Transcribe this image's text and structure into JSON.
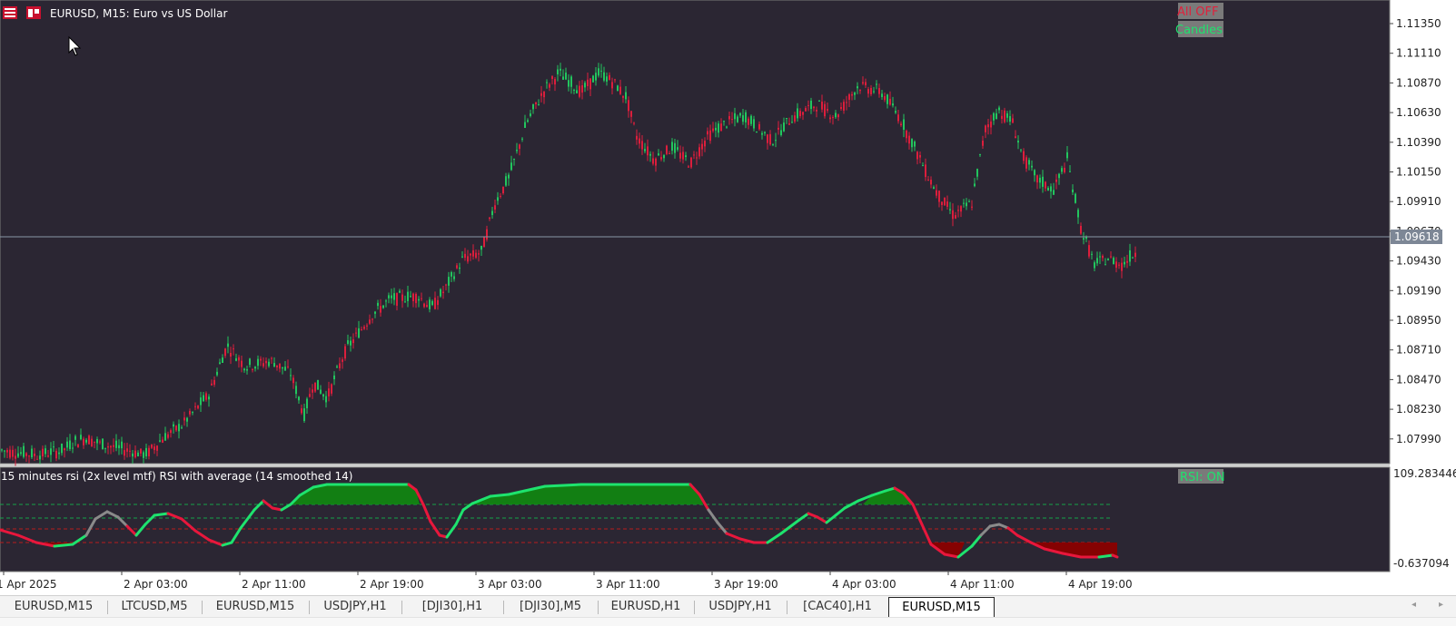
{
  "chart": {
    "symbol_title": "EURUSD, M15:  Euro vs US Dollar",
    "buttons": {
      "all_off": "All OFF",
      "candles": "Candles",
      "rsi_on": "RSI: ON"
    },
    "price_axis_labels": [
      "1.11350",
      "1.11110",
      "1.10870",
      "1.10630",
      "1.10390",
      "1.10150",
      "1.09910",
      "1.09670",
      "1.09430",
      "1.09190",
      "1.08950",
      "1.08710",
      "1.08470",
      "1.08230",
      "1.07990"
    ],
    "current_price": "1.09618",
    "indicator_title": "15 minutes rsi (2x level mtf) RSI with average (14 smoothed 14)",
    "indicator_axis": {
      "max": "109.283446",
      "min": "-0.637094"
    },
    "time_labels": [
      "1 Apr 2025",
      "2 Apr 03:00",
      "2 Apr 11:00",
      "2 Apr 19:00",
      "3 Apr 03:00",
      "3 Apr 11:00",
      "3 Apr 19:00",
      "4 Apr 03:00",
      "4 Apr 11:00",
      "4 Apr 19:00"
    ],
    "colors": {
      "background": "#2b2633",
      "bull": "#22c55e",
      "bear": "#dc1e3c",
      "rsi_up": "#1ee36e",
      "rsi_down": "#e8173c",
      "rsi_neutral": "#8a8a8a",
      "ob_fill": "#0f8a10",
      "os_fill": "#8a0000"
    }
  },
  "tabs": {
    "items": [
      "EURUSD,M15",
      "LTCUSD,M5",
      "EURUSD,M15",
      "USDJPY,H1",
      "[DJI30],H1",
      "[DJI30],M5",
      "EURUSD,H1",
      "USDJPY,H1",
      "[CAC40],H1",
      "EURUSD,M15"
    ],
    "active_index": 9,
    "scroll_left": "◂",
    "scroll_right": "▸"
  }
}
